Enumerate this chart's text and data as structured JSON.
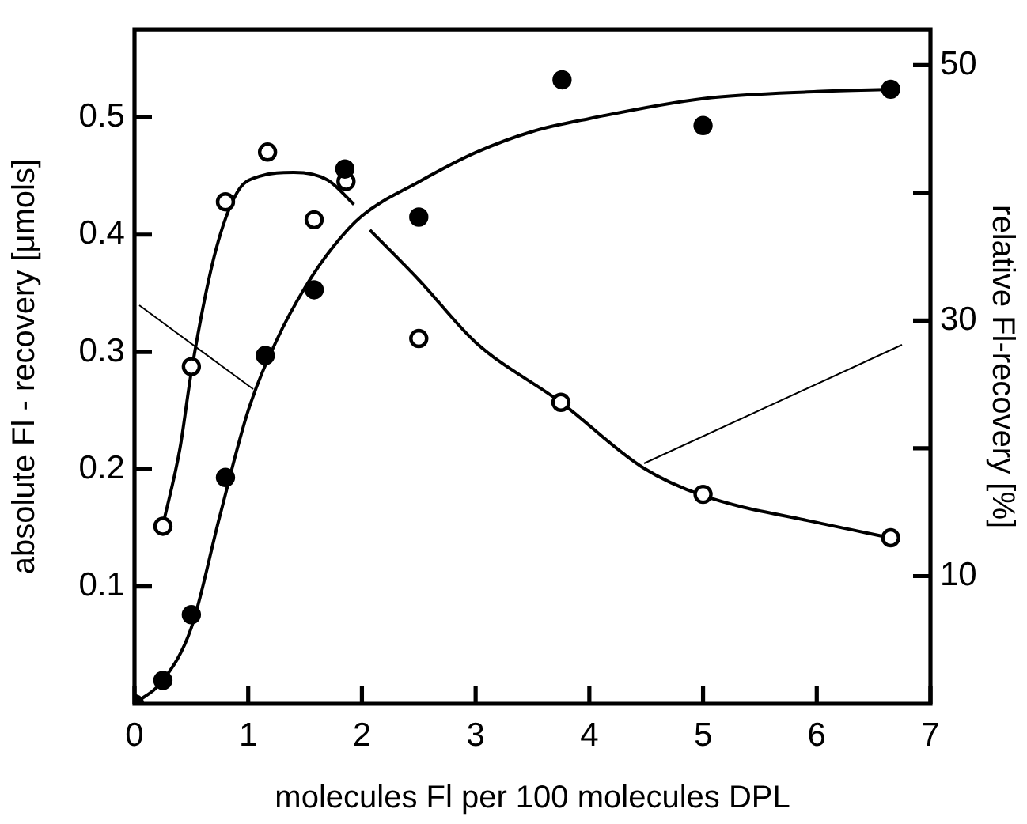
{
  "chart_data": {
    "type": "scatter",
    "xlabel": "molecules Fl per 100 molecules DPL",
    "ylabel": "absolute Fl - recovery [μmols]",
    "y2label": "relative Fl-recovery [%]",
    "xlim": [
      0,
      7
    ],
    "xticks": [
      0,
      1,
      2,
      3,
      4,
      5,
      6,
      7
    ],
    "ylim": [
      0,
      0.575
    ],
    "yticks": [
      0.1,
      0.2,
      0.3,
      0.4,
      0.5
    ],
    "y2lim": [
      0,
      52.8
    ],
    "y2ticks": [
      10,
      {
        "value": 20,
        "label": null
      },
      30,
      {
        "value": 40,
        "label": null
      },
      50
    ],
    "grid": false,
    "legend": false,
    "marker": "circle",
    "series": [
      {
        "color": "#000000",
        "x": [
          0,
          0.25,
          0.5,
          0.8,
          1.15,
          1.58,
          1.85,
          2.5,
          3.76,
          5.0,
          6.65
        ],
        "values": [
          0,
          0.02,
          0.076,
          0.193,
          0.297,
          0.353,
          0.456,
          0.415,
          0.532,
          0.493,
          0.524
        ]
      },
      {
        "axis": "y2",
        "color": "#000000",
        "x": [
          0.25,
          0.5,
          0.8,
          1.17,
          1.58,
          1.86,
          2.5,
          3.75,
          5.0,
          6.65
        ],
        "values": [
          13.9,
          26.4,
          39.3,
          43.2,
          37.9,
          40.9,
          28.6,
          23.6,
          16.4,
          13.0
        ]
      },
      {
        "type": "line",
        "marker": "none",
        "color": "#000000",
        "x": [
          0,
          0.25,
          0.5,
          0.75,
          1,
          1.25,
          1.5,
          1.75,
          2,
          2.5,
          3,
          3.5,
          4,
          5,
          6,
          6.7
        ],
        "values": [
          0,
          0.02,
          0.065,
          0.16,
          0.25,
          0.31,
          0.355,
          0.39,
          0.416,
          0.445,
          0.47,
          0.488,
          0.499,
          0.516,
          0.522,
          0.524
        ]
      },
      {
        "type": "line",
        "marker": "none",
        "axis": "y2",
        "color": "#000000",
        "x": [
          0.25,
          0.4,
          0.5,
          0.7,
          0.9,
          1.1,
          1.4,
          1.7,
          1.93,
          2.0,
          2.07,
          2.5,
          3,
          3.75,
          4.47,
          5,
          6,
          6.65
        ],
        "values": [
          14,
          20,
          26,
          35,
          40,
          41.3,
          41.6,
          41,
          39.1,
          null,
          37.1,
          33.2,
          28.3,
          23.6,
          18.5,
          16.3,
          14.2,
          13
        ]
      }
    ]
  }
}
